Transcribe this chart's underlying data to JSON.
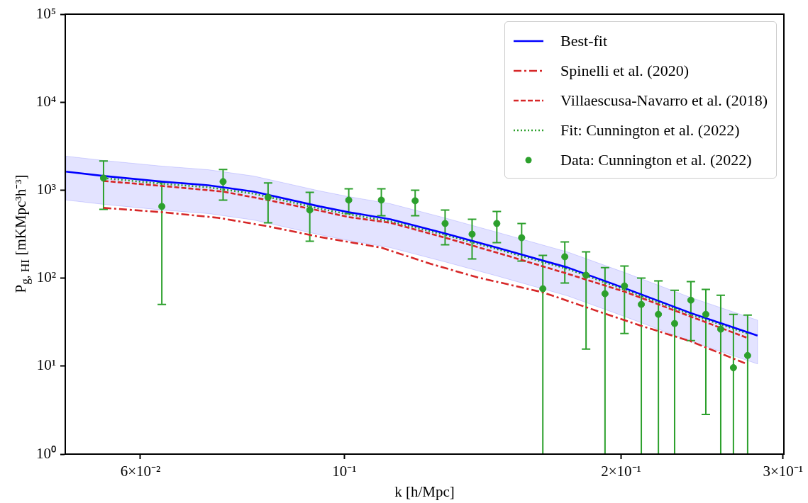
{
  "chart_data": {
    "type": "scatter",
    "xlabel": "k [h/Mpc]",
    "ylabel": "P$_{g, HI}$ [mKMpc³h⁻³]",
    "log": "xy",
    "grid": false,
    "legend": "top right",
    "marker": "none",
    "xlim": [
      0.0497,
      0.3007
    ],
    "xticks": [
      {
        "value": 0.06,
        "label": "6×10⁻²"
      },
      {
        "value": 0.1,
        "label": "10⁻¹"
      },
      {
        "value": 0.2,
        "label": "2×10⁻¹"
      },
      {
        "value": 0.3,
        "label": "3×10⁻¹"
      }
    ],
    "ylim": [
      1,
      100000
    ],
    "yticks": [
      {
        "value": 1,
        "label": "10⁰"
      },
      {
        "value": 10,
        "label": "10¹"
      },
      {
        "value": 100,
        "label": "10²"
      },
      {
        "value": 1000,
        "label": "10³"
      },
      {
        "value": 10000,
        "label": "10⁴"
      },
      {
        "value": 100000,
        "label": "10⁵"
      }
    ],
    "series": [
      {
        "name": "Best-fit",
        "type": "line",
        "line_style": "solid",
        "color": "#0000ff",
        "x": [
          0.0498,
          0.0547,
          0.0633,
          0.0711,
          0.0797,
          0.094,
          0.1011,
          0.1122,
          0.1287,
          0.1465,
          0.175,
          0.2017,
          0.2379,
          0.2815
        ],
        "values": [
          1622,
          1449,
          1250,
          1138,
          963,
          653,
          562,
          467,
          322,
          222,
          132,
          77.1,
          40.3,
          22.2
        ],
        "upper": [
          2433,
          2174,
          1875,
          1707,
          1445,
          980,
          843,
          701,
          483,
          333,
          198,
          116,
          60.5,
          33.3
        ],
        "lower": [
          772,
          690,
          595,
          542,
          458,
          311,
          268,
          222,
          153,
          106,
          62.8,
          36.7,
          19.2,
          10.6
        ]
      },
      {
        "name": "Spinelli et al. (2020)",
        "type": "line",
        "line_style": "dashdot",
        "color": "#d62728",
        "x": [
          0.0547,
          0.0633,
          0.0729,
          0.0826,
          0.094,
          0.1097,
          0.1242,
          0.1396,
          0.1644,
          0.1813,
          0.2101,
          0.2379,
          0.2727
        ],
        "values": [
          629,
          562,
          485,
          388,
          294,
          222,
          145,
          102,
          69.0,
          48.5,
          28.8,
          19.2,
          10.8
        ]
      },
      {
        "name": "Villaescusa-Navarro et al. (2018)",
        "type": "line",
        "line_style": "dashed",
        "color": "#d62728",
        "x": [
          0.0547,
          0.0633,
          0.0738,
          0.0826,
          0.094,
          0.1011,
          0.1122,
          0.1287,
          0.1465,
          0.175,
          0.2017,
          0.2379,
          0.2742
        ],
        "values": [
          1273,
          1117,
          963,
          771,
          584,
          494,
          426,
          288,
          195,
          112,
          70.3,
          36.7,
          21.0
        ]
      },
      {
        "name": "Fit: Cunnington et al. (2022)",
        "type": "line",
        "line_style": "dotted",
        "color": "#2ca02c",
        "x": [
          0.0547,
          0.0633,
          0.0711,
          0.0797,
          0.094,
          0.1011,
          0.1122,
          0.1287,
          0.1465,
          0.175,
          0.2017,
          0.2379,
          0.2746
        ],
        "values": [
          1371,
          1182,
          1077,
          911,
          617,
          532,
          442,
          310,
          214,
          127,
          74.3,
          38.8,
          23.5
        ]
      },
      {
        "name": "Data: Cunnington et al. (2022)",
        "type": "scatter",
        "marker": "circle",
        "color": "#2ca02c",
        "x": [
          0.0547,
          0.0633,
          0.0738,
          0.0826,
          0.0917,
          0.1011,
          0.1097,
          0.1194,
          0.1287,
          0.1377,
          0.1465,
          0.1559,
          0.1644,
          0.1737,
          0.1832,
          0.1921,
          0.2017,
          0.2104,
          0.2196,
          0.2287,
          0.2382,
          0.2473,
          0.2567,
          0.265,
          0.2746
        ],
        "values": [
          1371,
          653,
          1250,
          830,
          594,
          771,
          771,
          757,
          418,
          316,
          418,
          288,
          75.7,
          175,
          108,
          66.5,
          81.5,
          50.3,
          38.8,
          30.5,
          56.2,
          38.8,
          26.3,
          9.6,
          13.2
        ],
        "errors": [
          [
            606,
            2140
          ],
          [
            50.3,
            1227
          ],
          [
            771,
            1714
          ],
          [
            426,
            1205
          ],
          [
            263,
            946
          ],
          [
            542,
            1038
          ],
          [
            512,
            1038
          ],
          [
            512,
            1000
          ],
          [
            239,
            594
          ],
          [
            165,
            467
          ],
          [
            253,
            573
          ],
          [
            156,
            418
          ],
          [
            1,
            181
          ],
          [
            87.8,
            258
          ],
          [
            15.6,
            199
          ],
          [
            1,
            132
          ],
          [
            23.5,
            137
          ],
          [
            1,
            100
          ],
          [
            1,
            92.9
          ],
          [
            1,
            72.9
          ],
          [
            19.5,
            91.2
          ],
          [
            2.83,
            74.3
          ],
          [
            1,
            64
          ],
          [
            1,
            38.8
          ],
          [
            1,
            38.1
          ]
        ]
      }
    ]
  }
}
